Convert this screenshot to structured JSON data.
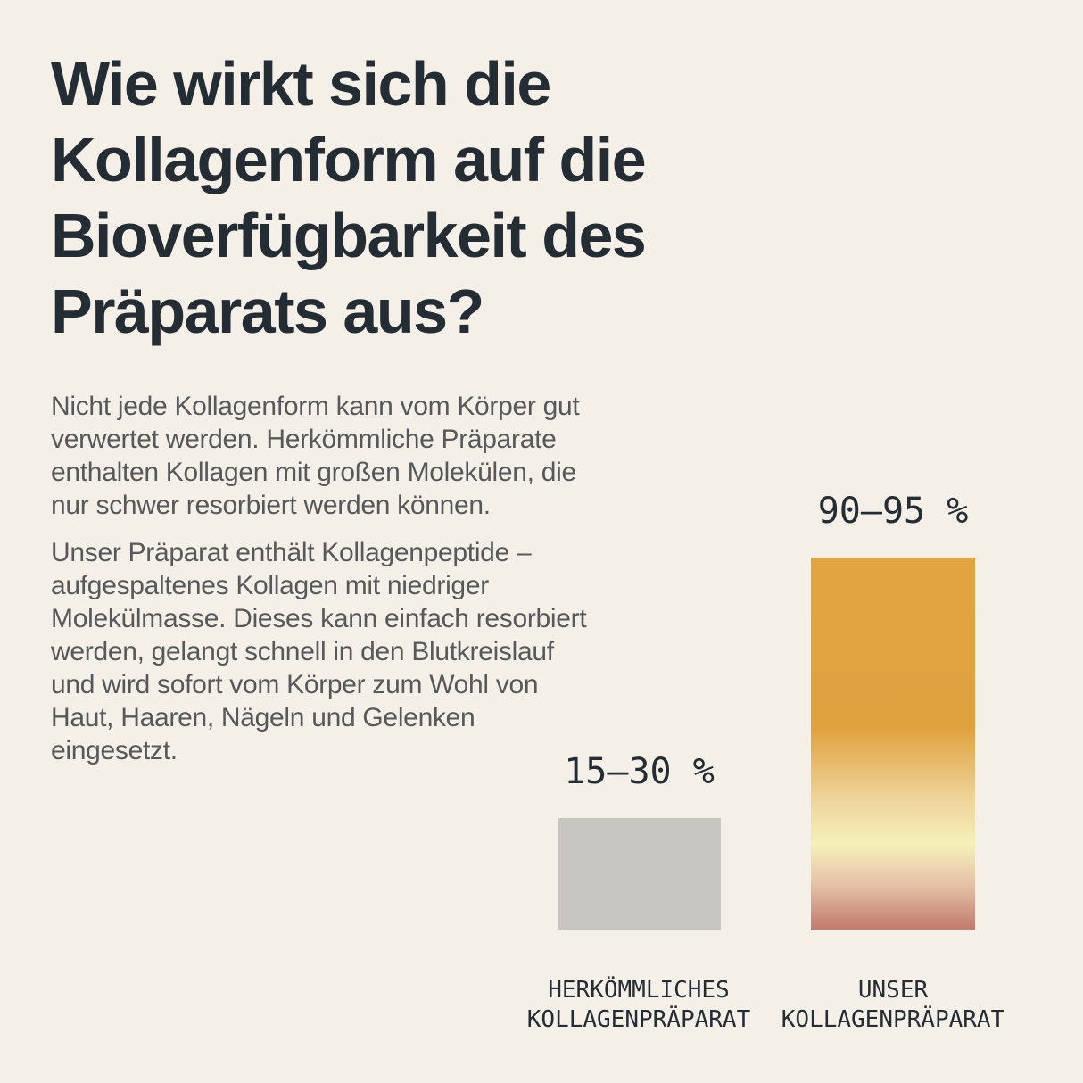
{
  "page": {
    "background_color": "#f4f0e8",
    "heading_color": "#242c34",
    "body_color": "#56585a"
  },
  "header": {
    "title_lines": [
      "Wie wirkt sich die",
      "Kollagenform auf die",
      "Bioverfügbarkeit des",
      "Präparats aus?"
    ]
  },
  "body": {
    "paragraph1_lines": [
      "Nicht jede Kollagenform kann vom Körper gut",
      "verwertet werden. Herkömmliche Präparate",
      "enthalten Kollagen mit großen Molekülen, die",
      "nur schwer resorbiert werden können."
    ],
    "paragraph2_lines": [
      "Unser Präparat enthält Kollagenpeptide –",
      "aufgespaltenes Kollagen mit niedriger",
      "Molekülmasse. Dieses kann einfach resorbiert",
      "werden, gelangt schnell in den Blutkreislauf",
      "und wird sofort vom Körper zum Wohl von",
      "Haut, Haaren, Nägeln und Gelenken",
      "eingesetzt."
    ]
  },
  "chart_data": {
    "type": "bar",
    "unit": "%",
    "grid": false,
    "axes_visible": false,
    "legend": "none",
    "label_text_color": "#242c34",
    "categories": [
      "HERKÖMMLICHES KOLLAGENPRÄPARAT",
      "UNSER KOLLAGENPRÄPARAT"
    ],
    "bars": [
      {
        "category_lines": [
          "HERKÖMMLICHES",
          "KOLLAGENPRÄPARAT"
        ],
        "value_label": "15–30 %",
        "value_range": [
          15,
          30
        ],
        "plotted_pct": 27.7,
        "fill": {
          "type": "solid",
          "color": "#c7c6c1"
        }
      },
      {
        "category_lines": [
          "UNSER",
          "KOLLAGENPRÄPARAT"
        ],
        "value_label": "90–95 %",
        "value_range": [
          90,
          95
        ],
        "plotted_pct": 92.5,
        "fill": {
          "type": "gradient",
          "stops": [
            {
              "color": "#e1a441",
              "pos": "0%"
            },
            {
              "color": "#e0a23f",
              "pos": "46%"
            },
            {
              "color": "#eed49a",
              "pos": "65%"
            },
            {
              "color": "#f5f0ba",
              "pos": "77%"
            },
            {
              "color": "#e4c2a6",
              "pos": "88%"
            },
            {
              "color": "#c17a6c",
              "pos": "100%"
            }
          ]
        }
      }
    ]
  }
}
